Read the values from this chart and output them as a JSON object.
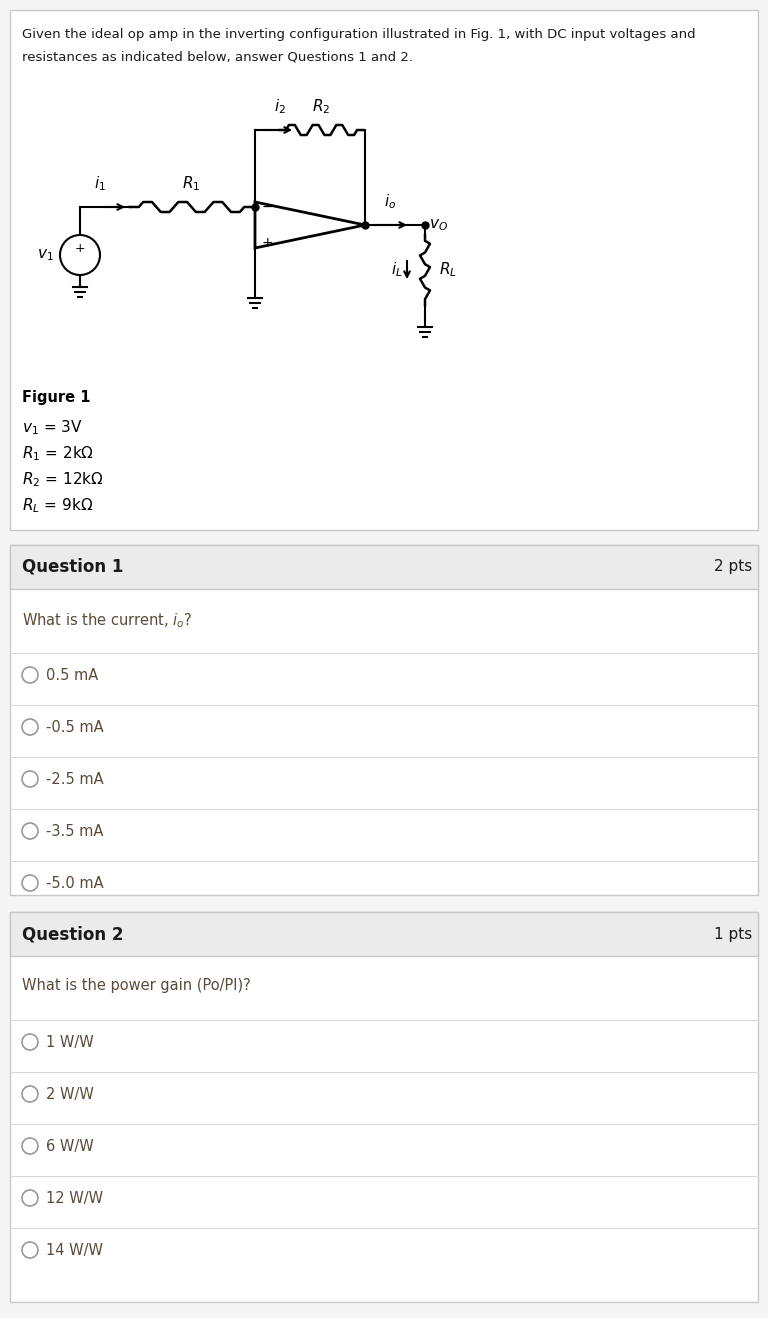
{
  "intro_text_line1": "Given the ideal op amp in the inverting configuration illustrated in Fig. 1, with DC input voltages and",
  "intro_text_line2": "resistances as indicated below, answer Questions 1 and 2.",
  "figure_label": "Figure 1",
  "q1_title": "Question 1",
  "q1_pts": "2 pts",
  "q1_options": [
    "0.5 mA",
    "-0.5 mA",
    "-2.5 mA",
    "-3.5 mA",
    "-5.0 mA"
  ],
  "q2_title": "Question 2",
  "q2_pts": "1 pts",
  "q2_text": "What is the power gain (Po/PI)?",
  "q2_options": [
    "1 W/W",
    "2 W/W",
    "6 W/W",
    "12 W/W",
    "14 W/W"
  ],
  "bg_color": "#f5f5f5",
  "box_bg": "#ffffff",
  "header_bg": "#ebebeb",
  "border_color": "#c8c8c8",
  "text_dark": "#1a1a1a",
  "question_color": "#5a4a3a",
  "header_text": "#1a1a1a",
  "divider_color": "#d8d8d8"
}
